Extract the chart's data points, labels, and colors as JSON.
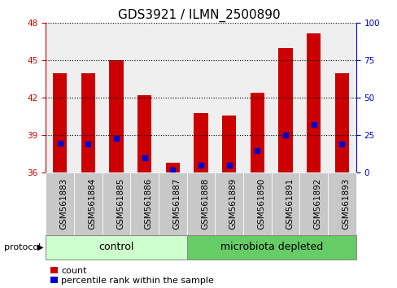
{
  "title": "GDS3921 / ILMN_2500890",
  "samples": [
    "GSM561883",
    "GSM561884",
    "GSM561885",
    "GSM561886",
    "GSM561887",
    "GSM561888",
    "GSM561889",
    "GSM561890",
    "GSM561891",
    "GSM561892",
    "GSM561893"
  ],
  "count_values": [
    44.0,
    44.0,
    45.0,
    42.2,
    36.8,
    40.8,
    40.6,
    42.4,
    46.0,
    47.2,
    44.0
  ],
  "percentile_values": [
    20,
    19,
    23,
    10,
    2,
    5,
    5,
    15,
    25,
    32,
    19
  ],
  "ylim_left": [
    36,
    48
  ],
  "ylim_right": [
    0,
    100
  ],
  "yticks_left": [
    36,
    39,
    42,
    45,
    48
  ],
  "yticks_right": [
    0,
    25,
    50,
    75,
    100
  ],
  "bar_color": "#cc0000",
  "dot_color": "#0000cc",
  "bar_width": 0.5,
  "groups": [
    {
      "label": "control",
      "start": 0,
      "end": 5,
      "color": "#ccffcc"
    },
    {
      "label": "microbiota depleted",
      "start": 5,
      "end": 11,
      "color": "#66cc66"
    }
  ],
  "protocol_label": "protocol",
  "legend_count_label": "count",
  "legend_percentile_label": "percentile rank within the sample",
  "bg_color": "#ffffff",
  "axis_left_color": "#cc0000",
  "axis_right_color": "#0000cc",
  "title_fontsize": 11,
  "tick_fontsize": 7.5,
  "label_fontsize": 8,
  "group_label_fontsize": 9,
  "col_bg_color": "#d3d3d3"
}
